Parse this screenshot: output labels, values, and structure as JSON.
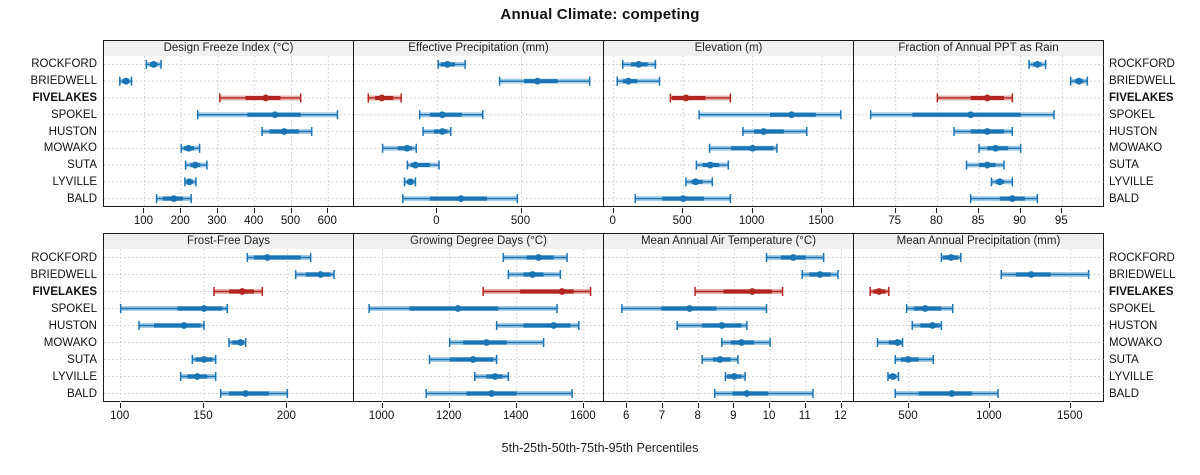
{
  "title": "Annual Climate: competing",
  "caption": "5th-25th-50th-75th-95th Percentiles",
  "percentile_labels": [
    "5th",
    "25th",
    "50th",
    "75th",
    "95th"
  ],
  "locations": [
    "ROCKFORD",
    "BRIEDWELL",
    "FIVELAKES",
    "SPOKEL",
    "HUSTON",
    "MOWAKO",
    "SUTA",
    "LYVILLE",
    "BALD"
  ],
  "highlight_location": "FIVELAKES",
  "colors": {
    "series_blue": "#1b74b4",
    "series_blue_light": "#a7cde6",
    "highlight_red": "#b22622",
    "highlight_red_light": "#e6b1ab",
    "strip_bg": "#f0f0f0",
    "grid": "#c9c9c9",
    "border": "#1a1a1a"
  },
  "chart_data": [
    {
      "type": "scatter",
      "title": "Design Freeze Index (°C)",
      "row": 0,
      "col": 0,
      "xlim": [
        -10,
        670
      ],
      "ticks": [
        100,
        200,
        300,
        400,
        500,
        600
      ],
      "values": [
        [
          105,
          115,
          125,
          135,
          145
        ],
        [
          33,
          40,
          50,
          58,
          65
        ],
        [
          305,
          375,
          430,
          470,
          525
        ],
        [
          245,
          380,
          455,
          525,
          625
        ],
        [
          420,
          440,
          480,
          520,
          555
        ],
        [
          200,
          207,
          220,
          235,
          250
        ],
        [
          212,
          225,
          238,
          252,
          270
        ],
        [
          210,
          216,
          222,
          232,
          240
        ],
        [
          133,
          150,
          180,
          205,
          227
        ]
      ]
    },
    {
      "type": "scatter",
      "title": "Effective Precipitation (mm)",
      "row": 0,
      "col": 1,
      "xlim": [
        -495,
        990
      ],
      "ticks": [
        0,
        500
      ],
      "values": [
        [
          5,
          20,
          60,
          105,
          165
        ],
        [
          370,
          515,
          595,
          715,
          905
        ],
        [
          -410,
          -370,
          -330,
          -262,
          -215
        ],
        [
          -105,
          -45,
          30,
          145,
          270
        ],
        [
          -85,
          -20,
          30,
          60,
          80
        ],
        [
          -325,
          -235,
          -180,
          -150,
          -125
        ],
        [
          -178,
          -158,
          -130,
          -45,
          10
        ],
        [
          -195,
          -180,
          -160,
          -140,
          -130
        ],
        [
          -205,
          -45,
          140,
          295,
          475
        ]
      ]
    },
    {
      "type": "scatter",
      "title": "Elevation (m)",
      "row": 0,
      "col": 2,
      "xlim": [
        -70,
        1730
      ],
      "ticks": [
        0,
        500,
        1000,
        1500
      ],
      "values": [
        [
          65,
          125,
          180,
          245,
          300
        ],
        [
          25,
          65,
          105,
          170,
          330
        ],
        [
          408,
          420,
          520,
          660,
          840
        ],
        [
          615,
          1125,
          1280,
          1455,
          1635
        ],
        [
          930,
          1010,
          1080,
          1225,
          1390
        ],
        [
          690,
          845,
          1000,
          1150,
          1175
        ],
        [
          595,
          640,
          695,
          760,
          825
        ],
        [
          520,
          560,
          590,
          640,
          710
        ],
        [
          155,
          350,
          500,
          650,
          840
        ]
      ]
    },
    {
      "type": "scatter",
      "title": "Fraction of Annual PPT as Rain",
      "row": 0,
      "col": 3,
      "xlim": [
        70,
        100
      ],
      "ticks": [
        75,
        80,
        85,
        90,
        95
      ],
      "values": [
        [
          91,
          91.5,
          92,
          92.5,
          93
        ],
        [
          96,
          96.5,
          97,
          97.5,
          98
        ],
        [
          80,
          84,
          86,
          88,
          89
        ],
        [
          72,
          77,
          84,
          90,
          94
        ],
        [
          82,
          84,
          86,
          88,
          89
        ],
        [
          85,
          86,
          87,
          88.5,
          90
        ],
        [
          83.5,
          85,
          86,
          87,
          88
        ],
        [
          86.5,
          87,
          87.5,
          88,
          89
        ],
        [
          84,
          87.5,
          89,
          90.5,
          92
        ]
      ]
    },
    {
      "type": "scatter",
      "title": "Frost-Free Days",
      "row": 1,
      "col": 0,
      "xlim": [
        90,
        240
      ],
      "ticks": [
        100,
        150,
        200
      ],
      "values": [
        [
          176,
          180,
          188,
          208,
          214
        ],
        [
          205,
          211,
          220,
          226,
          228
        ],
        [
          156,
          165,
          173,
          180,
          185
        ],
        [
          100,
          134,
          150,
          161,
          164
        ],
        [
          111,
          120,
          138,
          148,
          150
        ],
        [
          165,
          167,
          172,
          174,
          175
        ],
        [
          143,
          145,
          150,
          155,
          157
        ],
        [
          136,
          140,
          146,
          152,
          157
        ],
        [
          160,
          165,
          175,
          189,
          200
        ]
      ]
    },
    {
      "type": "scatter",
      "title": "Growing Degree Days (°C)",
      "row": 1,
      "col": 1,
      "xlim": [
        915,
        1660
      ],
      "ticks": [
        1000,
        1200,
        1400,
        1600
      ],
      "values": [
        [
          1360,
          1430,
          1465,
          1510,
          1550
        ],
        [
          1375,
          1420,
          1447,
          1480,
          1530
        ],
        [
          1300,
          1410,
          1535,
          1570,
          1620
        ],
        [
          960,
          1080,
          1225,
          1345,
          1520
        ],
        [
          1340,
          1420,
          1510,
          1560,
          1585
        ],
        [
          1200,
          1240,
          1310,
          1370,
          1480
        ],
        [
          1140,
          1200,
          1270,
          1330,
          1340
        ],
        [
          1275,
          1310,
          1335,
          1358,
          1375
        ],
        [
          1130,
          1250,
          1325,
          1400,
          1565
        ]
      ]
    },
    {
      "type": "scatter",
      "title": "Mean Annual Air Temperature (°C)",
      "row": 1,
      "col": 2,
      "xlim": [
        5.35,
        12.35
      ],
      "ticks": [
        6,
        7,
        8,
        9,
        10,
        11,
        12
      ],
      "values": [
        [
          9.9,
          10.3,
          10.65,
          11.0,
          11.5
        ],
        [
          10.9,
          11.1,
          11.4,
          11.7,
          11.9
        ],
        [
          7.9,
          8.7,
          9.5,
          10.05,
          10.35
        ],
        [
          5.85,
          6.95,
          7.75,
          8.5,
          9.9
        ],
        [
          7.4,
          8.1,
          8.65,
          9.2,
          9.35
        ],
        [
          8.65,
          8.9,
          9.2,
          9.55,
          10.0
        ],
        [
          8.1,
          8.4,
          8.6,
          8.9,
          9.1
        ],
        [
          8.75,
          8.8,
          9.0,
          9.2,
          9.3
        ],
        [
          8.45,
          8.95,
          9.35,
          9.95,
          11.2
        ]
      ]
    },
    {
      "type": "scatter",
      "title": "Mean Annual Precipitation (mm)",
      "row": 1,
      "col": 3,
      "xlim": [
        160,
        1705
      ],
      "ticks": [
        500,
        1000,
        1500
      ],
      "values": [
        [
          700,
          710,
          760,
          805,
          820
        ],
        [
          1070,
          1160,
          1255,
          1375,
          1610
        ],
        [
          260,
          280,
          315,
          355,
          375
        ],
        [
          485,
          530,
          600,
          700,
          770
        ],
        [
          520,
          570,
          645,
          690,
          700
        ],
        [
          305,
          375,
          430,
          455,
          460
        ],
        [
          415,
          450,
          495,
          560,
          650
        ],
        [
          370,
          375,
          400,
          420,
          435
        ],
        [
          415,
          560,
          765,
          890,
          1050
        ]
      ]
    }
  ]
}
